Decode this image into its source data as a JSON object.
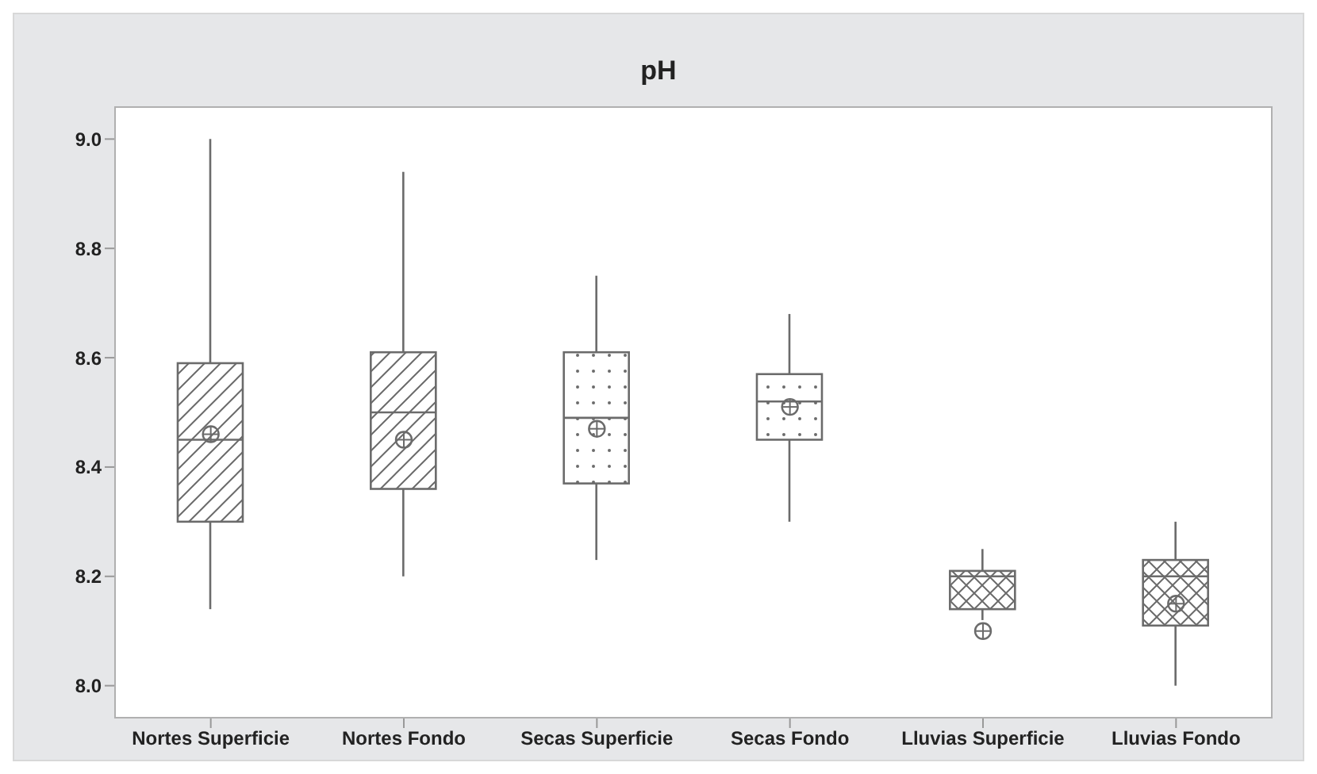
{
  "chart_data": {
    "type": "box",
    "title": "pH",
    "categories": [
      "Nortes Superficie",
      "Nortes Fondo",
      "Secas Superficie",
      "Secas Fondo",
      "Lluvias Superficie",
      "Lluvias Fondo"
    ],
    "boxes": [
      {
        "low": 8.14,
        "q1": 8.3,
        "median": 8.45,
        "q3": 8.59,
        "high": 9.0,
        "mean": 8.46
      },
      {
        "low": 8.2,
        "q1": 8.36,
        "median": 8.5,
        "q3": 8.61,
        "high": 8.94,
        "mean": 8.45
      },
      {
        "low": 8.23,
        "q1": 8.37,
        "median": 8.49,
        "q3": 8.61,
        "high": 8.75,
        "mean": 8.47
      },
      {
        "low": 8.3,
        "q1": 8.45,
        "median": 8.52,
        "q3": 8.57,
        "high": 8.68,
        "mean": 8.51
      },
      {
        "low": 8.12,
        "q1": 8.14,
        "median": 8.2,
        "q3": 8.21,
        "high": 8.25,
        "mean": 8.1
      },
      {
        "low": 8.0,
        "q1": 8.11,
        "median": 8.2,
        "q3": 8.23,
        "high": 8.3,
        "mean": 8.15
      }
    ],
    "ylim": [
      7.94,
      9.06
    ],
    "yticks": [
      {
        "value": 8,
        "label": "8.0"
      },
      {
        "value": 8.2,
        "label": "8.2"
      },
      {
        "value": 8.4,
        "label": "8.4"
      },
      {
        "value": 8.6,
        "label": "8.6"
      },
      {
        "value": 8.8,
        "label": "8.8"
      },
      {
        "value": 9,
        "label": "9.0"
      }
    ]
  }
}
